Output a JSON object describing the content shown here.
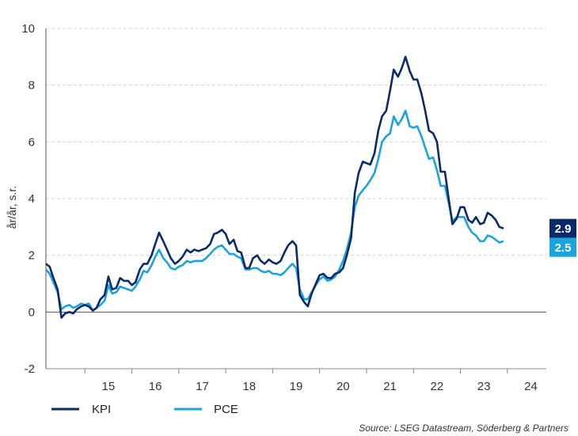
{
  "chart_data": {
    "type": "line",
    "title": "",
    "xlabel": "",
    "ylabel": "år/år, s.r.",
    "ylim": [
      -2,
      10
    ],
    "yticks": [
      -2,
      0,
      2,
      4,
      6,
      8,
      10
    ],
    "xlim": [
      2014.17,
      2024.83
    ],
    "xticks": [
      {
        "label": "15",
        "x": 2015.5
      },
      {
        "label": "16",
        "x": 2016.5
      },
      {
        "label": "17",
        "x": 2017.5
      },
      {
        "label": "18",
        "x": 2018.5
      },
      {
        "label": "19",
        "x": 2019.5
      },
      {
        "label": "20",
        "x": 2020.5
      },
      {
        "label": "21",
        "x": 2021.5
      },
      {
        "label": "22",
        "x": 2022.5
      },
      {
        "label": "23",
        "x": 2023.5
      },
      {
        "label": "24",
        "x": 2024.5
      }
    ],
    "grid": "horizontal dashed",
    "legend_position": "bottom-left",
    "series": [
      {
        "name": "KPI",
        "color": "#0b2a6b",
        "end_label": "2.9",
        "points": [
          [
            2014.17,
            1.7
          ],
          [
            2014.25,
            1.6
          ],
          [
            2014.33,
            1.2
          ],
          [
            2014.42,
            0.8
          ],
          [
            2014.5,
            -0.2
          ],
          [
            2014.58,
            -0.05
          ],
          [
            2014.67,
            0.0
          ],
          [
            2014.75,
            -0.05
          ],
          [
            2014.83,
            0.1
          ],
          [
            2014.92,
            0.2
          ],
          [
            2015.0,
            0.25
          ],
          [
            2015.08,
            0.2
          ],
          [
            2015.17,
            0.05
          ],
          [
            2015.25,
            0.15
          ],
          [
            2015.33,
            0.45
          ],
          [
            2015.42,
            0.6
          ],
          [
            2015.5,
            1.25
          ],
          [
            2015.58,
            0.8
          ],
          [
            2015.67,
            0.85
          ],
          [
            2015.75,
            1.2
          ],
          [
            2015.83,
            1.1
          ],
          [
            2015.92,
            1.1
          ],
          [
            2016.0,
            0.95
          ],
          [
            2016.08,
            1.05
          ],
          [
            2016.17,
            1.5
          ],
          [
            2016.25,
            1.7
          ],
          [
            2016.33,
            1.7
          ],
          [
            2016.42,
            2.0
          ],
          [
            2016.5,
            2.4
          ],
          [
            2016.58,
            2.8
          ],
          [
            2016.67,
            2.5
          ],
          [
            2016.75,
            2.2
          ],
          [
            2016.83,
            1.9
          ],
          [
            2016.92,
            1.7
          ],
          [
            2017.0,
            1.8
          ],
          [
            2017.08,
            1.95
          ],
          [
            2017.17,
            2.2
          ],
          [
            2017.25,
            2.1
          ],
          [
            2017.33,
            2.2
          ],
          [
            2017.42,
            2.15
          ],
          [
            2017.5,
            2.2
          ],
          [
            2017.58,
            2.25
          ],
          [
            2017.67,
            2.4
          ],
          [
            2017.75,
            2.75
          ],
          [
            2017.83,
            2.8
          ],
          [
            2017.92,
            2.9
          ],
          [
            2018.0,
            2.75
          ],
          [
            2018.08,
            2.4
          ],
          [
            2018.17,
            2.55
          ],
          [
            2018.25,
            2.15
          ],
          [
            2018.33,
            2.1
          ],
          [
            2018.42,
            1.55
          ],
          [
            2018.5,
            1.55
          ],
          [
            2018.58,
            1.9
          ],
          [
            2018.67,
            2.0
          ],
          [
            2018.75,
            1.8
          ],
          [
            2018.83,
            1.7
          ],
          [
            2018.92,
            1.85
          ],
          [
            2019.0,
            1.75
          ],
          [
            2019.08,
            1.7
          ],
          [
            2019.17,
            1.8
          ],
          [
            2019.25,
            2.1
          ],
          [
            2019.33,
            2.35
          ],
          [
            2019.42,
            2.5
          ],
          [
            2019.5,
            2.35
          ],
          [
            2019.58,
            0.6
          ],
          [
            2019.67,
            0.35
          ],
          [
            2019.75,
            0.2
          ],
          [
            2019.83,
            0.65
          ],
          [
            2019.92,
            1.0
          ],
          [
            2020.0,
            1.3
          ],
          [
            2020.08,
            1.35
          ],
          [
            2020.17,
            1.2
          ],
          [
            2020.25,
            1.2
          ],
          [
            2020.33,
            1.35
          ],
          [
            2020.42,
            1.4
          ],
          [
            2020.5,
            1.55
          ],
          [
            2020.58,
            2.0
          ],
          [
            2020.67,
            2.6
          ],
          [
            2020.75,
            4.2
          ],
          [
            2020.83,
            4.9
          ],
          [
            2020.92,
            5.3
          ],
          [
            2021.0,
            5.25
          ],
          [
            2021.08,
            5.2
          ],
          [
            2021.17,
            5.6
          ],
          [
            2021.25,
            6.4
          ],
          [
            2021.33,
            6.9
          ],
          [
            2021.42,
            7.1
          ],
          [
            2021.5,
            7.8
          ],
          [
            2021.58,
            8.55
          ],
          [
            2021.67,
            8.3
          ],
          [
            2021.75,
            8.6
          ],
          [
            2021.83,
            9.0
          ],
          [
            2021.92,
            8.5
          ],
          [
            2022.0,
            8.2
          ],
          [
            2022.08,
            8.2
          ],
          [
            2022.17,
            7.7
          ],
          [
            2022.25,
            7.1
          ],
          [
            2022.33,
            6.4
          ],
          [
            2022.42,
            6.3
          ],
          [
            2022.5,
            6.0
          ],
          [
            2022.58,
            4.95
          ],
          [
            2022.67,
            4.95
          ],
          [
            2022.75,
            4.0
          ],
          [
            2022.83,
            3.1
          ],
          [
            2022.92,
            3.3
          ],
          [
            2023.0,
            3.7
          ],
          [
            2023.08,
            3.7
          ],
          [
            2023.17,
            3.25
          ],
          [
            2023.25,
            3.15
          ],
          [
            2023.33,
            3.35
          ],
          [
            2023.42,
            3.1
          ],
          [
            2023.5,
            3.15
          ],
          [
            2023.58,
            3.5
          ],
          [
            2023.67,
            3.4
          ],
          [
            2023.75,
            3.25
          ],
          [
            2023.83,
            3.0
          ],
          [
            2023.92,
            2.95
          ]
        ]
      },
      {
        "name": "PCE",
        "color": "#1aa3dd",
        "end_label": "2.5",
        "points": [
          [
            2014.17,
            1.5
          ],
          [
            2014.25,
            1.35
          ],
          [
            2014.33,
            1.05
          ],
          [
            2014.42,
            0.7
          ],
          [
            2014.5,
            0.1
          ],
          [
            2014.58,
            0.2
          ],
          [
            2014.67,
            0.25
          ],
          [
            2014.75,
            0.15
          ],
          [
            2014.83,
            0.2
          ],
          [
            2014.92,
            0.3
          ],
          [
            2015.0,
            0.25
          ],
          [
            2015.08,
            0.3
          ],
          [
            2015.17,
            0.05
          ],
          [
            2015.25,
            0.15
          ],
          [
            2015.33,
            0.25
          ],
          [
            2015.42,
            0.4
          ],
          [
            2015.5,
            0.95
          ],
          [
            2015.58,
            0.65
          ],
          [
            2015.67,
            0.7
          ],
          [
            2015.75,
            0.9
          ],
          [
            2015.83,
            0.85
          ],
          [
            2015.92,
            0.8
          ],
          [
            2016.0,
            0.75
          ],
          [
            2016.08,
            0.9
          ],
          [
            2016.17,
            1.15
          ],
          [
            2016.25,
            1.45
          ],
          [
            2016.33,
            1.4
          ],
          [
            2016.42,
            1.65
          ],
          [
            2016.5,
            1.95
          ],
          [
            2016.58,
            2.2
          ],
          [
            2016.67,
            1.9
          ],
          [
            2016.75,
            1.75
          ],
          [
            2016.83,
            1.55
          ],
          [
            2016.92,
            1.5
          ],
          [
            2017.0,
            1.6
          ],
          [
            2017.08,
            1.65
          ],
          [
            2017.17,
            1.8
          ],
          [
            2017.25,
            1.75
          ],
          [
            2017.33,
            1.8
          ],
          [
            2017.42,
            1.8
          ],
          [
            2017.5,
            1.8
          ],
          [
            2017.58,
            1.9
          ],
          [
            2017.67,
            2.05
          ],
          [
            2017.75,
            2.2
          ],
          [
            2017.83,
            2.3
          ],
          [
            2017.92,
            2.35
          ],
          [
            2018.0,
            2.2
          ],
          [
            2018.08,
            2.05
          ],
          [
            2018.17,
            2.05
          ],
          [
            2018.25,
            1.95
          ],
          [
            2018.33,
            1.9
          ],
          [
            2018.42,
            1.5
          ],
          [
            2018.5,
            1.5
          ],
          [
            2018.58,
            1.55
          ],
          [
            2018.67,
            1.55
          ],
          [
            2018.75,
            1.45
          ],
          [
            2018.83,
            1.4
          ],
          [
            2018.92,
            1.45
          ],
          [
            2019.0,
            1.35
          ],
          [
            2019.08,
            1.35
          ],
          [
            2019.17,
            1.3
          ],
          [
            2019.25,
            1.4
          ],
          [
            2019.33,
            1.55
          ],
          [
            2019.42,
            1.7
          ],
          [
            2019.5,
            1.55
          ],
          [
            2019.58,
            0.8
          ],
          [
            2019.67,
            0.45
          ],
          [
            2019.75,
            0.45
          ],
          [
            2019.83,
            0.7
          ],
          [
            2019.92,
            0.95
          ],
          [
            2020.0,
            1.15
          ],
          [
            2020.08,
            1.25
          ],
          [
            2020.17,
            1.1
          ],
          [
            2020.25,
            1.15
          ],
          [
            2020.33,
            1.25
          ],
          [
            2020.42,
            1.5
          ],
          [
            2020.5,
            1.8
          ],
          [
            2020.58,
            2.2
          ],
          [
            2020.67,
            2.8
          ],
          [
            2020.75,
            3.7
          ],
          [
            2020.83,
            4.1
          ],
          [
            2020.92,
            4.3
          ],
          [
            2021.0,
            4.45
          ],
          [
            2021.08,
            4.65
          ],
          [
            2021.17,
            4.9
          ],
          [
            2021.25,
            5.4
          ],
          [
            2021.33,
            6.0
          ],
          [
            2021.42,
            6.2
          ],
          [
            2021.5,
            6.3
          ],
          [
            2021.58,
            6.9
          ],
          [
            2021.67,
            6.6
          ],
          [
            2021.75,
            6.8
          ],
          [
            2021.83,
            7.1
          ],
          [
            2021.92,
            6.55
          ],
          [
            2022.0,
            6.5
          ],
          [
            2022.08,
            6.55
          ],
          [
            2022.17,
            6.2
          ],
          [
            2022.25,
            5.8
          ],
          [
            2022.33,
            5.4
          ],
          [
            2022.42,
            5.45
          ],
          [
            2022.5,
            5.0
          ],
          [
            2022.58,
            4.45
          ],
          [
            2022.67,
            4.45
          ],
          [
            2022.75,
            3.85
          ],
          [
            2022.83,
            3.2
          ],
          [
            2022.92,
            3.35
          ],
          [
            2023.0,
            3.35
          ],
          [
            2023.08,
            3.35
          ],
          [
            2023.17,
            3.0
          ],
          [
            2023.25,
            2.8
          ],
          [
            2023.33,
            2.7
          ],
          [
            2023.42,
            2.5
          ],
          [
            2023.5,
            2.5
          ],
          [
            2023.58,
            2.7
          ],
          [
            2023.67,
            2.65
          ],
          [
            2023.75,
            2.55
          ],
          [
            2023.83,
            2.45
          ],
          [
            2023.92,
            2.5
          ]
        ]
      }
    ],
    "source": "Source: LSEG Datastream, Söderberg & Partners"
  }
}
